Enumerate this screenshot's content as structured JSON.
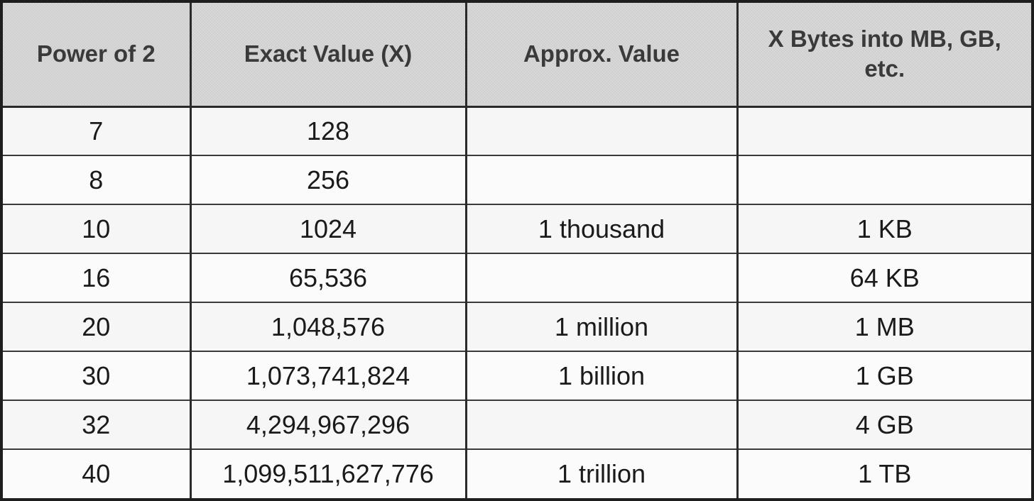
{
  "table": {
    "headers": [
      "Power of 2",
      "Exact Value (X)",
      "Approx. Value",
      "X Bytes into MB, GB, etc."
    ],
    "rows": [
      [
        "7",
        "128",
        "",
        ""
      ],
      [
        "8",
        "256",
        "",
        ""
      ],
      [
        "10",
        "1024",
        "1 thousand",
        "1 KB"
      ],
      [
        "16",
        "65,536",
        "",
        "64 KB"
      ],
      [
        "20",
        "1,048,576",
        "1 million",
        "1 MB"
      ],
      [
        "30",
        "1,073,741,824",
        "1 billion",
        "1 GB"
      ],
      [
        "32",
        "4,294,967,296",
        "",
        "4 GB"
      ],
      [
        "40",
        "1,099,511,627,776",
        "1 trillion",
        "1 TB"
      ]
    ]
  },
  "colors": {
    "header_background": "#cfcfcf",
    "header_text": "#3a3a3a",
    "grid_lines": "#2a2a2a",
    "body_text": "#1a1a1a"
  }
}
